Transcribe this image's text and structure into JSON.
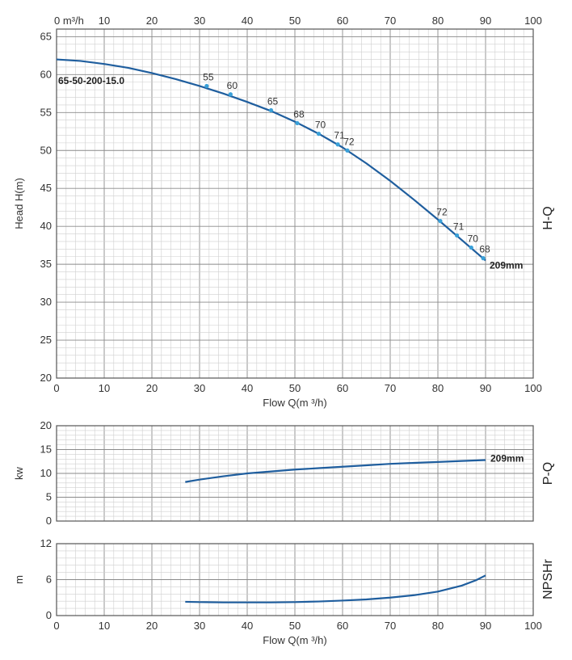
{
  "colors": {
    "curve": "#1f5e9e",
    "marker": "#39a0d8",
    "major_grid": "#8a8a8a",
    "minor_grid": "#cfcfcf",
    "frame": "#555555"
  },
  "chart_data": [
    {
      "id": "hq",
      "type": "line",
      "model_label": "65-50-200-15.0",
      "diameter_label": "209mm",
      "side_label": "H-Q",
      "ylabel": "Head H(m)",
      "xlabel": "Flow Q(m ³/h)",
      "top_axis_unit": "0  m³/h",
      "xlim": [
        0,
        100
      ],
      "ylim": [
        20,
        66
      ],
      "x_ticks": [
        0,
        10,
        20,
        30,
        40,
        50,
        60,
        70,
        80,
        90,
        100
      ],
      "top_ticks": [
        10,
        20,
        30,
        40,
        50,
        60,
        70,
        80,
        90,
        100
      ],
      "y_ticks": [
        20,
        25,
        30,
        35,
        40,
        45,
        50,
        55,
        60,
        65
      ],
      "grid": true,
      "series": [
        {
          "x": [
            0,
            5,
            10,
            15,
            20,
            25,
            30,
            35,
            40,
            45,
            50,
            55,
            60,
            65,
            70,
            75,
            80,
            85,
            90
          ],
          "y": [
            62.0,
            61.8,
            61.4,
            60.9,
            60.2,
            59.4,
            58.5,
            57.5,
            56.4,
            55.2,
            53.8,
            52.2,
            50.4,
            48.3,
            46.0,
            43.5,
            40.9,
            38.2,
            35.5
          ]
        }
      ],
      "efficiency_points": [
        {
          "x": 31.5,
          "y": 58.5,
          "label": "55"
        },
        {
          "x": 36.5,
          "y": 57.4,
          "label": "60"
        },
        {
          "x": 45,
          "y": 55.3,
          "label": "65"
        },
        {
          "x": 50.5,
          "y": 53.6,
          "label": "68"
        },
        {
          "x": 55,
          "y": 52.2,
          "label": "70"
        },
        {
          "x": 59,
          "y": 50.8,
          "label": "71"
        },
        {
          "x": 61,
          "y": 50.0,
          "label": "72"
        },
        {
          "x": 80.5,
          "y": 40.7,
          "label": "72"
        },
        {
          "x": 84,
          "y": 38.8,
          "label": "71"
        },
        {
          "x": 87,
          "y": 37.2,
          "label": "70"
        },
        {
          "x": 89.5,
          "y": 35.8,
          "label": "68"
        }
      ]
    },
    {
      "id": "pq",
      "type": "line",
      "diameter_label": "209mm",
      "side_label": "P-Q",
      "ylabel": "kw",
      "xlim": [
        0,
        100
      ],
      "ylim": [
        0,
        20
      ],
      "y_ticks": [
        0,
        5,
        10,
        15,
        20
      ],
      "grid": true,
      "series": [
        {
          "x": [
            27,
            30,
            35,
            40,
            45,
            50,
            55,
            60,
            65,
            70,
            75,
            80,
            85,
            90
          ],
          "y": [
            8.2,
            8.7,
            9.4,
            10.0,
            10.4,
            10.8,
            11.1,
            11.4,
            11.7,
            12.0,
            12.2,
            12.4,
            12.6,
            12.8
          ]
        }
      ]
    },
    {
      "id": "npsh",
      "type": "line",
      "side_label": "NPSHr",
      "ylabel": "m",
      "xlabel": "Flow Q(m ³/h)",
      "xlim": [
        0,
        100
      ],
      "ylim": [
        0,
        12
      ],
      "x_ticks": [
        0,
        10,
        20,
        30,
        40,
        50,
        60,
        70,
        80,
        90,
        100
      ],
      "y_ticks": [
        0,
        6,
        12
      ],
      "grid": true,
      "series": [
        {
          "x": [
            27,
            30,
            35,
            40,
            45,
            50,
            55,
            60,
            65,
            70,
            75,
            80,
            85,
            88,
            90
          ],
          "y": [
            2.3,
            2.25,
            2.2,
            2.2,
            2.2,
            2.25,
            2.35,
            2.5,
            2.7,
            3.0,
            3.4,
            4.0,
            5.0,
            5.9,
            6.7
          ]
        }
      ]
    }
  ]
}
